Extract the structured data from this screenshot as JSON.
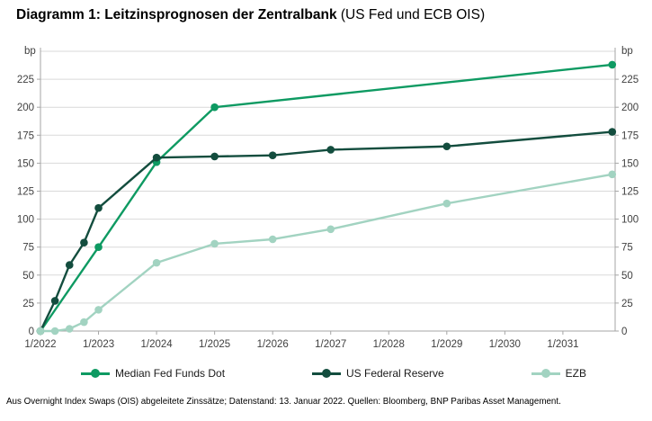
{
  "title": {
    "main": "Diagramm 1: Leitzinsprognosen der Zentralbank",
    "suffix": " (US Fed und ECB OIS)"
  },
  "footer": "Aus Overnight Index Swaps (OIS) abgeleitete Zinssätze; Datenstand: 13. Januar 2022. Quellen: Bloomberg, BNP Paribas Asset Management.",
  "chart_data": {
    "type": "line",
    "unit_label": "bp",
    "grid": true,
    "legend_position": "bottom",
    "x_axis": {
      "min": 2022,
      "max": 2031.9,
      "tick_years": [
        2022,
        2023,
        2024,
        2025,
        2026,
        2027,
        2028,
        2029,
        2030,
        2031
      ],
      "tick_labels": [
        "1/2022",
        "1/2023",
        "1/2024",
        "1/2025",
        "1/2026",
        "1/2027",
        "1/2028",
        "1/2029",
        "1/2030",
        "1/2031"
      ]
    },
    "y_axis": {
      "min": 0,
      "max": 250,
      "ticks": [
        0,
        25,
        50,
        75,
        100,
        125,
        150,
        175,
        200,
        225
      ],
      "unit": "bp"
    },
    "series": [
      {
        "name": "Median Fed Funds Dot",
        "color": "#0e9a62",
        "x": [
          2022,
          2023,
          2024,
          2025,
          2031.85
        ],
        "y": [
          0,
          75,
          151,
          200,
          238
        ]
      },
      {
        "name": "US Federal Reserve",
        "color": "#134d3e",
        "x": [
          2022,
          2022.25,
          2022.5,
          2022.75,
          2023,
          2024,
          2025,
          2026,
          2027,
          2029,
          2031.85
        ],
        "y": [
          0,
          27,
          59,
          79,
          110,
          155,
          156,
          157,
          162,
          165,
          178
        ]
      },
      {
        "name": "EZB",
        "color": "#a2d3c1",
        "x": [
          2022,
          2022.25,
          2022.5,
          2022.75,
          2023,
          2024,
          2025,
          2026,
          2027,
          2029,
          2031.85
        ],
        "y": [
          0,
          0,
          2,
          8,
          19,
          61,
          78,
          82,
          91,
          114,
          140
        ]
      }
    ],
    "colors": {
      "grid": "#d9d9d9",
      "axis": "#a6a6a6",
      "tick_text": "#404040"
    }
  }
}
